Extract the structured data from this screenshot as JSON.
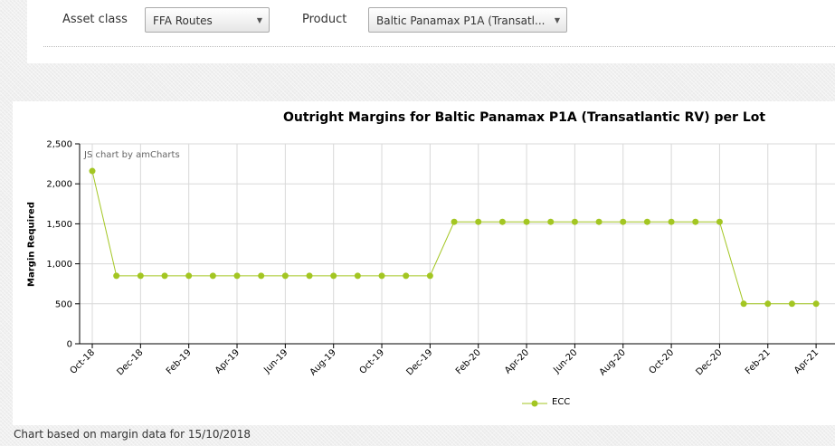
{
  "filters": {
    "asset_class_label": "Asset class",
    "asset_class_value": "FFA Routes",
    "product_label": "Product",
    "product_value": "Baltic Panamax P1A (Transatl..."
  },
  "icons": {
    "dropdown": "triangle-down-icon"
  },
  "chart_data": {
    "type": "line",
    "title": "Outright Margins for Baltic Panamax P1A (Transatlantic RV) per Lot",
    "credit": "JS chart by amCharts",
    "xlabel": "",
    "ylabel": "Margin Required",
    "ylim": [
      0,
      2500
    ],
    "y_ticks": [
      "0",
      "500",
      "1,000",
      "1,500",
      "2,000",
      "2,500"
    ],
    "x_tick_labels": [
      "Oct-18",
      "Dec-18",
      "Feb-19",
      "Apr-19",
      "Jun-19",
      "Aug-19",
      "Oct-19",
      "Dec-19",
      "Feb-20",
      "Apr-20",
      "Jun-20",
      "Aug-20",
      "Oct-20",
      "Dec-20",
      "Feb-21",
      "Apr-21"
    ],
    "x": [
      "Oct-18",
      "Nov-18",
      "Dec-18",
      "Jan-19",
      "Feb-19",
      "Mar-19",
      "Apr-19",
      "May-19",
      "Jun-19",
      "Jul-19",
      "Aug-19",
      "Sep-19",
      "Oct-19",
      "Nov-19",
      "Dec-19",
      "Jan-20",
      "Feb-20",
      "Mar-20",
      "Apr-20",
      "May-20",
      "Jun-20",
      "Jul-20",
      "Aug-20",
      "Sep-20",
      "Oct-20",
      "Nov-20",
      "Dec-20",
      "Jan-21",
      "Feb-21",
      "Mar-21",
      "Apr-21"
    ],
    "series": [
      {
        "name": "ECC",
        "color": "#a3c622",
        "values": [
          2160,
          850,
          850,
          850,
          850,
          850,
          850,
          850,
          850,
          850,
          850,
          850,
          850,
          850,
          850,
          1525,
          1525,
          1525,
          1525,
          1525,
          1525,
          1525,
          1525,
          1525,
          1525,
          1525,
          1525,
          500,
          500,
          500,
          500
        ]
      }
    ],
    "grid": true,
    "legend_position": "bottom"
  },
  "footer": {
    "note": "Chart based on margin data for 15/10/2018"
  }
}
